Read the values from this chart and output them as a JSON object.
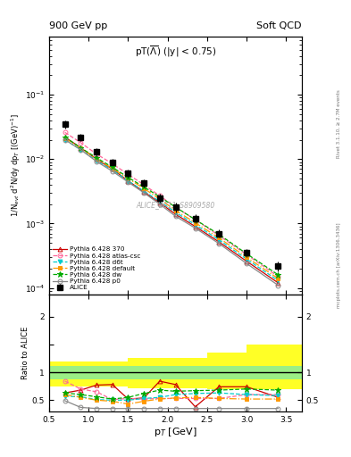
{
  "title_left": "900 GeV pp",
  "title_right": "Soft QCD",
  "watermark": "ALICE_2011_S8909580",
  "right_label_top": "Rivet 3.1.10, ≥ 2.7M events",
  "right_label_bot": "mcplots.cern.ch [arXiv:1306.3436]",
  "ylabel_main": "1/N$_{evt}$ d$^2$N/dy dp$_T$ [(GeV)$^{-1}$]",
  "ylabel_ratio": "Ratio to ALICE",
  "xlabel": "p$_T$ [GeV]",
  "alice_pt": [
    0.7,
    0.9,
    1.1,
    1.3,
    1.5,
    1.7,
    1.9,
    2.1,
    2.35,
    2.65,
    3.0,
    3.4
  ],
  "alice_y": [
    0.035,
    0.022,
    0.013,
    0.009,
    0.006,
    0.0042,
    0.0025,
    0.0018,
    0.0012,
    0.0007,
    0.00035,
    0.00022
  ],
  "alice_yerr": [
    0.005,
    0.003,
    0.002,
    0.001,
    0.0008,
    0.0006,
    0.0004,
    0.0003,
    0.00018,
    0.0001,
    5e-05,
    4e-05
  ],
  "py370_pt": [
    0.7,
    0.9,
    1.1,
    1.3,
    1.5,
    1.7,
    1.9,
    2.1,
    2.35,
    2.65,
    3.0,
    3.4
  ],
  "py370_y": [
    0.022,
    0.015,
    0.01,
    0.007,
    0.0046,
    0.0031,
    0.0021,
    0.0014,
    0.0009,
    0.00052,
    0.00026,
    0.00012
  ],
  "py370_color": "#cc0000",
  "py370_label": "Pythia 6.428 370",
  "pyatlas_pt": [
    0.7,
    0.9,
    1.1,
    1.3,
    1.5,
    1.7,
    1.9,
    2.1,
    2.35,
    2.65,
    3.0,
    3.4
  ],
  "pyatlas_y": [
    0.026,
    0.018,
    0.012,
    0.0085,
    0.0058,
    0.004,
    0.0027,
    0.0018,
    0.00115,
    0.00065,
    0.00033,
    0.00015
  ],
  "pyatlas_color": "#ff6699",
  "pyatlas_label": "Pythia 6.428 atlas-csc",
  "pyd6t_pt": [
    0.7,
    0.9,
    1.1,
    1.3,
    1.5,
    1.7,
    1.9,
    2.1,
    2.35,
    2.65,
    3.0,
    3.4
  ],
  "pyd6t_y": [
    0.02,
    0.014,
    0.0095,
    0.0068,
    0.0046,
    0.0032,
    0.0022,
    0.0015,
    0.00096,
    0.00056,
    0.00028,
    0.00013
  ],
  "pyd6t_color": "#00cccc",
  "pyd6t_label": "Pythia 6.428 d6t",
  "pydef_pt": [
    0.7,
    0.9,
    1.1,
    1.3,
    1.5,
    1.7,
    1.9,
    2.1,
    2.35,
    2.65,
    3.0,
    3.4
  ],
  "pydef_y": [
    0.021,
    0.015,
    0.01,
    0.0072,
    0.005,
    0.0035,
    0.0024,
    0.0016,
    0.00103,
    0.0006,
    0.0003,
    0.00014
  ],
  "pydef_color": "#ff9900",
  "pydef_label": "Pythia 6.428 default",
  "pydw_pt": [
    0.7,
    0.9,
    1.1,
    1.3,
    1.5,
    1.7,
    1.9,
    2.1,
    2.35,
    2.65,
    3.0,
    3.4
  ],
  "pydw_y": [
    0.022,
    0.015,
    0.0105,
    0.0075,
    0.0052,
    0.0037,
    0.0026,
    0.0018,
    0.00115,
    0.00068,
    0.00034,
    0.00016
  ],
  "pydw_color": "#00aa00",
  "pydw_label": "Pythia 6.428 dw",
  "pyp0_pt": [
    0.7,
    0.9,
    1.1,
    1.3,
    1.5,
    1.7,
    1.9,
    2.1,
    2.35,
    2.65,
    3.0,
    3.4
  ],
  "pyp0_y": [
    0.02,
    0.014,
    0.0092,
    0.0065,
    0.0044,
    0.003,
    0.002,
    0.0013,
    0.00085,
    0.00049,
    0.00024,
    0.00011
  ],
  "pyp0_color": "#888888",
  "pyp0_label": "Pythia 6.428 p0",
  "band_edges": [
    0.5,
    1.0,
    1.5,
    2.0,
    2.5,
    3.0,
    3.7
  ],
  "band_ylo_y": [
    0.75,
    0.75,
    0.72,
    0.72,
    0.7,
    0.7,
    0.7
  ],
  "band_yhi_y": [
    1.2,
    1.2,
    1.25,
    1.25,
    1.35,
    1.5,
    1.5
  ],
  "band_glo_y": [
    0.88,
    0.88,
    0.88,
    0.88,
    0.88,
    0.88,
    0.88
  ],
  "band_ghi_y": [
    1.12,
    1.12,
    1.12,
    1.12,
    1.12,
    1.12,
    1.12
  ],
  "ratio_py370": [
    0.63,
    0.68,
    0.77,
    0.78,
    0.52,
    0.54,
    0.84,
    0.78,
    0.38,
    0.74,
    0.74,
    0.55
  ],
  "ratio_pyatlas": [
    0.84,
    0.7,
    0.65,
    0.51,
    0.53,
    0.52,
    0.53,
    0.53,
    0.53,
    0.53,
    0.6,
    0.6
  ],
  "ratio_pyd6t": [
    0.57,
    0.56,
    0.51,
    0.5,
    0.5,
    0.53,
    0.55,
    0.6,
    0.62,
    0.63,
    0.6,
    0.58
  ],
  "ratio_pydef": [
    0.6,
    0.55,
    0.5,
    0.48,
    0.43,
    0.48,
    0.52,
    0.54,
    0.55,
    0.53,
    0.52,
    0.52
  ],
  "ratio_pydw": [
    0.63,
    0.6,
    0.56,
    0.52,
    0.55,
    0.62,
    0.68,
    0.66,
    0.67,
    0.68,
    0.7,
    0.68
  ],
  "ratio_pyp0": [
    0.49,
    0.37,
    0.35,
    0.35,
    0.35,
    0.35,
    0.35,
    0.35,
    0.35,
    0.35,
    0.35,
    0.35
  ],
  "ylim_main": [
    8e-05,
    0.8
  ],
  "ylim_ratio": [
    0.3,
    2.4
  ],
  "xlim": [
    0.5,
    3.7
  ]
}
